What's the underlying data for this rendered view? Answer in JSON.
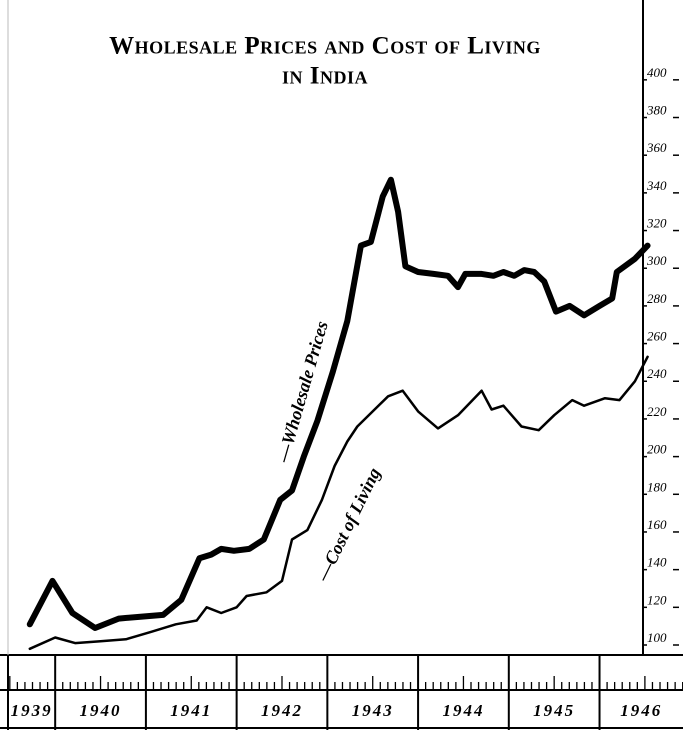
{
  "chart_data": {
    "type": "line",
    "title": [
      "Wholesale Prices and Cost of Living",
      "in India"
    ],
    "annotations": [
      {
        "text": "—Wholesale Prices"
      },
      {
        "text": "—Cost of Living"
      }
    ],
    "xlim": [
      1939.48,
      1946.92
    ],
    "xticks": [
      {
        "value": 1939,
        "label": "1939"
      },
      {
        "value": 1940,
        "label": "1940"
      },
      {
        "value": 1941,
        "label": "1941"
      },
      {
        "value": 1942,
        "label": "1942"
      },
      {
        "value": 1943,
        "label": "1943"
      },
      {
        "value": 1944,
        "label": "1944"
      },
      {
        "value": 1945,
        "label": "1945"
      },
      {
        "value": 1946,
        "label": "1946"
      }
    ],
    "ylim": [
      100,
      410
    ],
    "yticks": [
      100,
      120,
      140,
      160,
      180,
      200,
      220,
      240,
      260,
      280,
      300,
      320,
      340,
      360,
      380,
      400
    ],
    "series": [
      {
        "name": "Wholesale Prices",
        "color": "#000000",
        "x": [
          1939.72,
          1939.97,
          1940.19,
          1940.44,
          1940.7,
          1940.94,
          1941.19,
          1941.39,
          1941.59,
          1941.72,
          1941.83,
          1941.97,
          1942.14,
          1942.3,
          1942.48,
          1942.61,
          1942.74,
          1942.89,
          1943.06,
          1943.22,
          1943.37,
          1943.48,
          1943.61,
          1943.7,
          1943.78,
          1943.86,
          1944.0,
          1944.17,
          1944.33,
          1944.44,
          1944.52,
          1944.7,
          1944.83,
          1944.94,
          1945.06,
          1945.17,
          1945.28,
          1945.39,
          1945.52,
          1945.67,
          1945.83,
          1946.0,
          1946.14,
          1946.19,
          1946.39,
          1946.53
        ],
        "values": [
          111,
          134,
          117,
          109,
          114,
          115,
          116,
          124,
          146,
          148,
          151,
          150,
          151,
          156,
          177,
          182,
          200,
          219,
          245,
          272,
          312,
          314,
          338,
          347,
          330,
          301,
          298,
          297,
          296,
          290,
          297,
          297,
          296,
          298,
          296,
          299,
          298,
          293,
          277,
          280,
          275,
          280,
          284,
          298,
          305,
          312
        ]
      },
      {
        "name": "Cost of Living",
        "color": "#000000",
        "x": [
          1939.72,
          1940.0,
          1940.22,
          1940.5,
          1940.78,
          1941.06,
          1941.33,
          1941.56,
          1941.67,
          1941.83,
          1942.0,
          1942.11,
          1942.33,
          1942.5,
          1942.61,
          1942.78,
          1942.94,
          1943.08,
          1943.22,
          1943.33,
          1943.5,
          1943.67,
          1943.83,
          1944.0,
          1944.22,
          1944.44,
          1944.7,
          1944.81,
          1944.94,
          1945.14,
          1945.33,
          1945.5,
          1945.7,
          1945.83,
          1946.06,
          1946.22,
          1946.39,
          1946.53
        ],
        "values": [
          98,
          104,
          101,
          102,
          103,
          107,
          111,
          113,
          120,
          117,
          120,
          126,
          128,
          134,
          156,
          161,
          177,
          195,
          208,
          216,
          224,
          232,
          235,
          224,
          215,
          222,
          235,
          225,
          227,
          216,
          214,
          222,
          230,
          227,
          231,
          230,
          240,
          253
        ]
      }
    ],
    "grid": false
  }
}
